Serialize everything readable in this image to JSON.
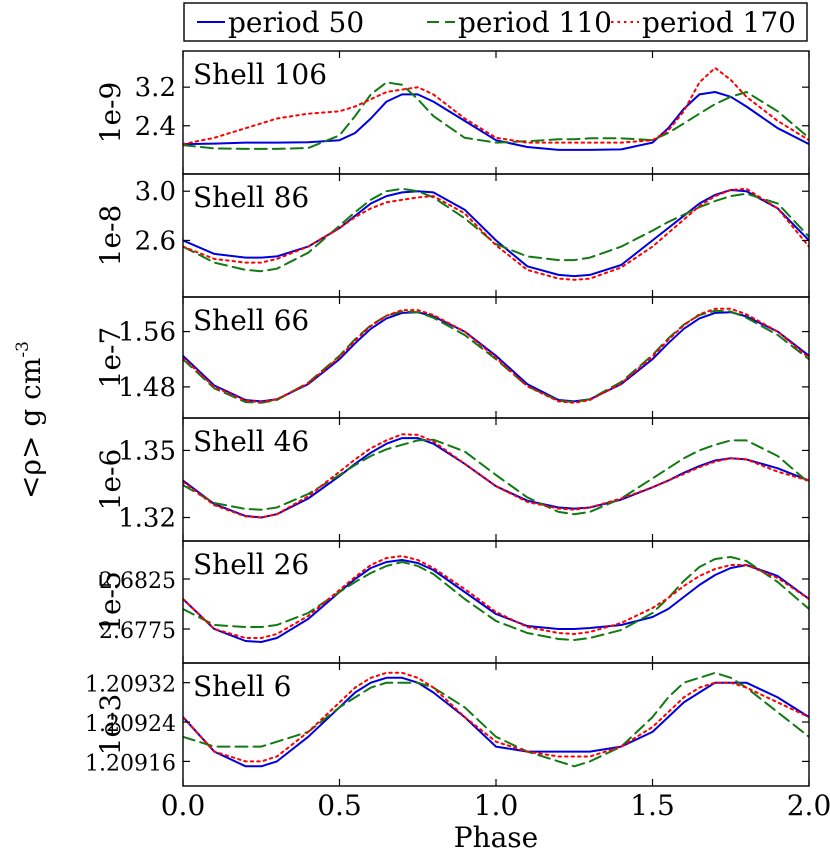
{
  "chart_data": {
    "type": "line",
    "xlabel": "Phase",
    "ylabel_main": "<ρ> g cm",
    "ylabel_sup": "-3",
    "xlim": [
      0.0,
      2.0
    ],
    "x_ticks": [
      "0.0",
      "0.5",
      "1.0",
      "1.5",
      "2.0"
    ],
    "legend": [
      {
        "name": "period 50",
        "color": "#0000dd",
        "style": "solid"
      },
      {
        "name": "period 110",
        "color": "#127a12",
        "style": "dashed"
      },
      {
        "name": "period 170",
        "color": "#ff0000",
        "style": "dotted"
      }
    ],
    "x": [
      0.0,
      0.1,
      0.2,
      0.25,
      0.3,
      0.4,
      0.5,
      0.55,
      0.6,
      0.65,
      0.7,
      0.75,
      0.8,
      0.9,
      1.0,
      1.1,
      1.2,
      1.25,
      1.3,
      1.4,
      1.5,
      1.55,
      1.6,
      1.65,
      1.7,
      1.75,
      1.8,
      1.9,
      2.0
    ],
    "panels": [
      {
        "label": "Shell 106",
        "scale": "1e-9",
        "ticks": [
          {
            "value": 3.2,
            "label": "3.2"
          },
          {
            "value": 2.4,
            "label": "2.4"
          }
        ],
        "ylim": [
          1.4,
          3.95
        ],
        "series": [
          [
            2.02,
            2.03,
            2.05,
            2.05,
            2.05,
            2.06,
            2.1,
            2.25,
            2.55,
            2.9,
            3.05,
            3.05,
            2.9,
            2.5,
            2.1,
            1.96,
            1.9,
            1.9,
            1.9,
            1.91,
            2.05,
            2.35,
            2.75,
            3.05,
            3.1,
            3.0,
            2.8,
            2.35,
            2.02
          ],
          [
            2.0,
            1.93,
            1.92,
            1.92,
            1.92,
            1.94,
            2.2,
            2.6,
            3.05,
            3.3,
            3.25,
            2.95,
            2.6,
            2.15,
            2.05,
            2.08,
            2.12,
            2.12,
            2.14,
            2.14,
            2.1,
            2.25,
            2.45,
            2.65,
            2.85,
            3.0,
            3.1,
            2.7,
            2.15
          ],
          [
            2.02,
            2.15,
            2.35,
            2.45,
            2.55,
            2.65,
            2.7,
            2.8,
            2.95,
            3.1,
            3.15,
            3.2,
            3.05,
            2.55,
            2.15,
            2.05,
            2.05,
            2.05,
            2.05,
            2.05,
            2.1,
            2.3,
            2.7,
            3.3,
            3.6,
            3.35,
            3.0,
            2.5,
            2.1
          ]
        ]
      },
      {
        "label": "Shell 86",
        "scale": "1e-8",
        "ticks": [
          {
            "value": 3.0,
            "label": "3.0"
          },
          {
            "value": 2.6,
            "label": "2.6"
          }
        ],
        "ylim": [
          2.14,
          3.14
        ],
        "series": [
          [
            2.6,
            2.49,
            2.46,
            2.46,
            2.47,
            2.55,
            2.7,
            2.8,
            2.9,
            2.96,
            2.99,
            3.0,
            2.99,
            2.85,
            2.6,
            2.39,
            2.32,
            2.31,
            2.32,
            2.4,
            2.6,
            2.7,
            2.8,
            2.9,
            2.97,
            3.01,
            3.0,
            2.86,
            2.6
          ],
          [
            2.55,
            2.42,
            2.36,
            2.35,
            2.37,
            2.5,
            2.72,
            2.83,
            2.93,
            3.0,
            3.02,
            3.0,
            2.95,
            2.78,
            2.57,
            2.47,
            2.44,
            2.44,
            2.46,
            2.55,
            2.68,
            2.75,
            2.81,
            2.87,
            2.92,
            2.96,
            2.98,
            2.9,
            2.63
          ],
          [
            2.55,
            2.45,
            2.42,
            2.42,
            2.45,
            2.55,
            2.7,
            2.79,
            2.86,
            2.91,
            2.93,
            2.95,
            2.96,
            2.82,
            2.56,
            2.36,
            2.29,
            2.28,
            2.29,
            2.38,
            2.55,
            2.66,
            2.77,
            2.88,
            2.96,
            3.01,
            3.02,
            2.86,
            2.55
          ]
        ]
      },
      {
        "label": "Shell 66",
        "scale": "1e-7",
        "ticks": [
          {
            "value": 1.56,
            "label": "1.56"
          },
          {
            "value": 1.48,
            "label": "1.48"
          }
        ],
        "ylim": [
          1.435,
          1.61
        ],
        "series": [
          [
            1.525,
            1.482,
            1.461,
            1.459,
            1.462,
            1.484,
            1.52,
            1.543,
            1.564,
            1.579,
            1.587,
            1.588,
            1.582,
            1.56,
            1.525,
            1.484,
            1.461,
            1.459,
            1.462,
            1.484,
            1.52,
            1.543,
            1.564,
            1.579,
            1.587,
            1.588,
            1.582,
            1.56,
            1.525
          ],
          [
            1.52,
            1.478,
            1.458,
            1.457,
            1.461,
            1.486,
            1.525,
            1.549,
            1.569,
            1.583,
            1.589,
            1.588,
            1.58,
            1.555,
            1.52,
            1.481,
            1.46,
            1.458,
            1.462,
            1.487,
            1.526,
            1.55,
            1.57,
            1.584,
            1.59,
            1.589,
            1.58,
            1.555,
            1.52
          ],
          [
            1.522,
            1.48,
            1.46,
            1.458,
            1.462,
            1.485,
            1.523,
            1.547,
            1.568,
            1.583,
            1.591,
            1.591,
            1.584,
            1.56,
            1.522,
            1.481,
            1.459,
            1.457,
            1.461,
            1.485,
            1.524,
            1.548,
            1.569,
            1.585,
            1.593,
            1.593,
            1.585,
            1.56,
            1.522
          ]
        ]
      },
      {
        "label": "Shell 46",
        "scale": "1e-6",
        "ticks": [
          {
            "value": 1.35,
            "label": "1.35"
          },
          {
            "value": 1.32,
            "label": "1.32"
          }
        ],
        "ylim": [
          1.3095,
          1.3645
        ],
        "series": [
          [
            1.3365,
            1.326,
            1.3207,
            1.32,
            1.3215,
            1.3285,
            1.3385,
            1.344,
            1.349,
            1.353,
            1.3555,
            1.3555,
            1.353,
            1.344,
            1.334,
            1.3275,
            1.3245,
            1.324,
            1.3245,
            1.328,
            1.3335,
            1.3365,
            1.34,
            1.343,
            1.3455,
            1.3465,
            1.346,
            1.342,
            1.3365
          ],
          [
            1.3345,
            1.3265,
            1.3238,
            1.3235,
            1.3245,
            1.3305,
            1.339,
            1.3435,
            1.3475,
            1.3505,
            1.3525,
            1.3545,
            1.3548,
            1.3495,
            1.339,
            1.329,
            1.3225,
            1.3215,
            1.3225,
            1.3285,
            1.3375,
            1.342,
            1.3465,
            1.35,
            1.3525,
            1.3545,
            1.3545,
            1.3475,
            1.3355
          ],
          [
            1.336,
            1.3255,
            1.3205,
            1.32,
            1.3215,
            1.3295,
            1.3405,
            1.346,
            1.351,
            1.3545,
            1.3572,
            1.357,
            1.354,
            1.344,
            1.334,
            1.327,
            1.324,
            1.3235,
            1.3245,
            1.3285,
            1.3335,
            1.3365,
            1.3395,
            1.3425,
            1.345,
            1.3465,
            1.346,
            1.3405,
            1.3365
          ]
        ]
      },
      {
        "label": "Shell 26",
        "scale": "1e-5",
        "ticks": [
          {
            "value": 2.6825,
            "label": "2.6825"
          },
          {
            "value": 2.6775,
            "label": "2.6775"
          }
        ],
        "ylim": [
          2.6741,
          2.6863
        ],
        "series": [
          [
            2.6805,
            2.6775,
            2.6763,
            2.6762,
            2.6766,
            2.6785,
            2.6812,
            2.6825,
            2.6836,
            2.6842,
            2.6844,
            2.6841,
            2.6834,
            2.6812,
            2.679,
            2.6778,
            2.6775,
            2.6775,
            2.6776,
            2.6779,
            2.6787,
            2.6795,
            2.6807,
            2.6819,
            2.6829,
            2.6836,
            2.6839,
            2.6828,
            2.6805
          ],
          [
            2.6795,
            2.6779,
            2.6777,
            2.6777,
            2.6779,
            2.6791,
            2.6812,
            2.6822,
            2.6831,
            2.6838,
            2.6842,
            2.6838,
            2.683,
            2.6805,
            2.6783,
            2.6771,
            2.6765,
            2.6764,
            2.6766,
            2.6774,
            2.6791,
            2.6806,
            2.6823,
            2.6837,
            2.6845,
            2.6847,
            2.6843,
            2.6822,
            2.6795
          ],
          [
            2.6805,
            2.6775,
            2.6766,
            2.6766,
            2.677,
            2.6788,
            2.6814,
            2.6827,
            2.6839,
            2.6846,
            2.6848,
            2.6844,
            2.6836,
            2.6815,
            2.6792,
            2.6777,
            2.6771,
            2.677,
            2.6772,
            2.6781,
            2.6796,
            2.6806,
            2.6818,
            2.6828,
            2.6835,
            2.6839,
            2.6839,
            2.6826,
            2.6805
          ]
        ]
      },
      {
        "label": "Shell 6",
        "scale": "1e-3",
        "ticks": [
          {
            "value": 1.20932,
            "label": "1.20932"
          },
          {
            "value": 1.20924,
            "label": "1.20924"
          },
          {
            "value": 1.20916,
            "label": "1.20916"
          }
        ],
        "ylim": [
          1.20911,
          1.20936
        ],
        "series": [
          [
            1.20925,
            1.20918,
            1.20915,
            1.20915,
            1.20916,
            1.20921,
            1.20927,
            1.2093,
            1.20932,
            1.20933,
            1.20933,
            1.20932,
            1.2093,
            1.20925,
            1.20919,
            1.20918,
            1.20918,
            1.20918,
            1.20918,
            1.20919,
            1.20922,
            1.20925,
            1.20928,
            1.2093,
            1.20932,
            1.20932,
            1.20932,
            1.20929,
            1.20925
          ],
          [
            1.20921,
            1.20919,
            1.20919,
            1.20919,
            1.2092,
            1.20922,
            1.20927,
            1.20929,
            1.20931,
            1.20932,
            1.20932,
            1.20932,
            1.20931,
            1.20927,
            1.20921,
            1.20918,
            1.20916,
            1.20915,
            1.20916,
            1.20919,
            1.20925,
            1.20929,
            1.20932,
            1.20933,
            1.20934,
            1.20933,
            1.20931,
            1.20926,
            1.20921
          ],
          [
            1.20925,
            1.20918,
            1.20916,
            1.20916,
            1.20917,
            1.20922,
            1.20928,
            1.20931,
            1.20933,
            1.20934,
            1.20934,
            1.20933,
            1.20931,
            1.20925,
            1.2092,
            1.20918,
            1.20917,
            1.20917,
            1.20917,
            1.20919,
            1.20923,
            1.20926,
            1.20929,
            1.20931,
            1.20932,
            1.20932,
            1.20931,
            1.20928,
            1.20925
          ]
        ]
      }
    ]
  }
}
